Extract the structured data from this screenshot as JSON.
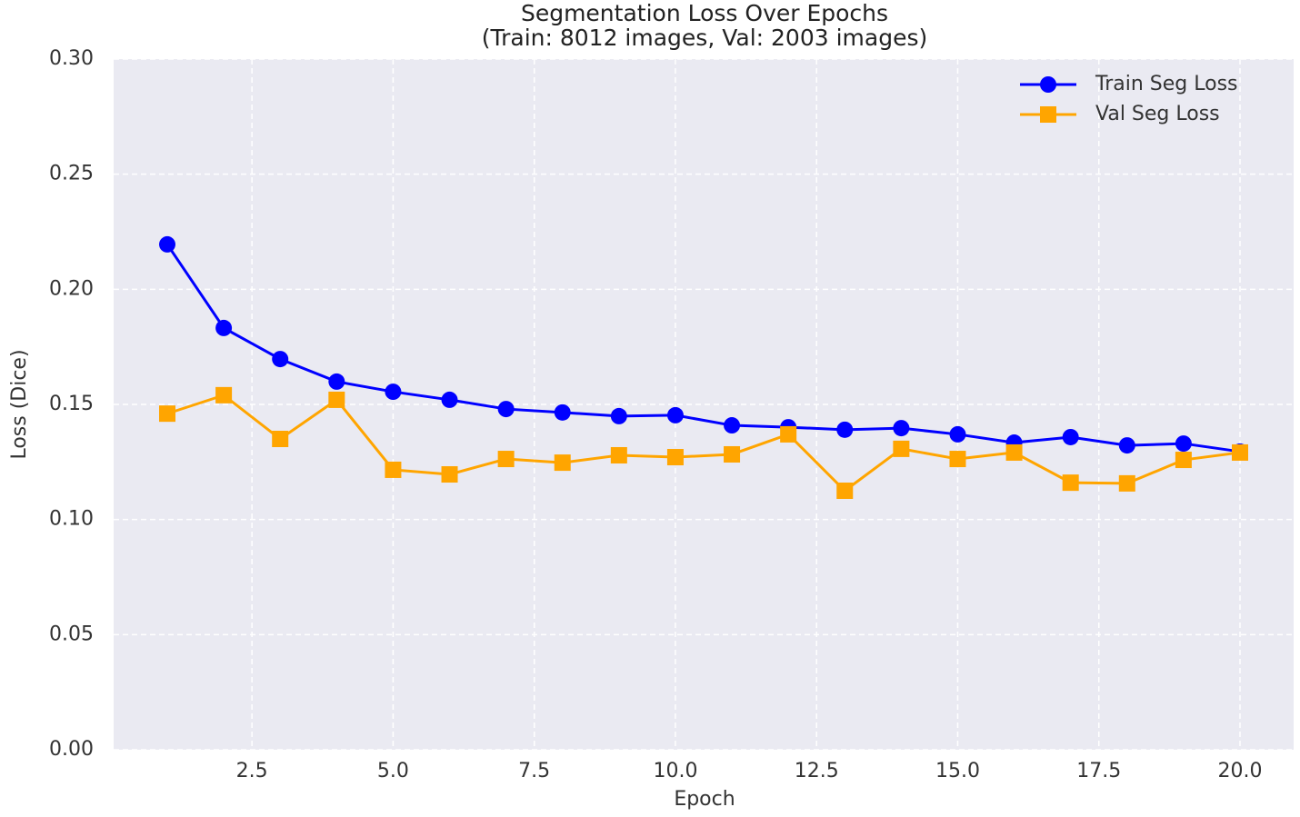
{
  "chart_data": {
    "type": "line",
    "title": "Segmentation Loss Over Epochs",
    "subtitle": "(Train: 8012 images, Val: 2003 images)",
    "x_label": "Epoch",
    "y_label": "Loss (Dice)",
    "x": [
      1,
      2,
      3,
      4,
      5,
      6,
      7,
      8,
      9,
      10,
      11,
      12,
      13,
      14,
      15,
      16,
      17,
      18,
      19,
      20
    ],
    "series": [
      {
        "name": "Train Seg Loss",
        "color": "#0000ff",
        "marker": "circle",
        "values": [
          0.2195,
          0.1832,
          0.1697,
          0.1599,
          0.1555,
          0.152,
          0.148,
          0.1465,
          0.1449,
          0.1453,
          0.1409,
          0.1401,
          0.139,
          0.1397,
          0.137,
          0.1334,
          0.1358,
          0.1322,
          0.133,
          0.1295
        ]
      },
      {
        "name": "Val Seg Loss",
        "color": "#ffa500",
        "marker": "square",
        "values": [
          0.146,
          0.154,
          0.135,
          0.152,
          0.1216,
          0.1196,
          0.1263,
          0.1247,
          0.1279,
          0.1271,
          0.1283,
          0.137,
          0.1125,
          0.1307,
          0.1263,
          0.1291,
          0.116,
          0.1157,
          0.1259,
          0.1291
        ]
      }
    ],
    "xlim": [
      0.05,
      20.95
    ],
    "xticks": [
      {
        "value": 2.5,
        "label": "2.5"
      },
      {
        "value": 5,
        "label": "5.0"
      },
      {
        "value": 7.5,
        "label": "7.5"
      },
      {
        "value": 10,
        "label": "10.0"
      },
      {
        "value": 12.5,
        "label": "12.5"
      },
      {
        "value": 15,
        "label": "15.0"
      },
      {
        "value": 17.5,
        "label": "17.5"
      },
      {
        "value": 20,
        "label": "20.0"
      }
    ],
    "ylim": [
      0,
      0.3
    ],
    "yticks": [
      {
        "value": 0,
        "label": "0.00"
      },
      0.05,
      {
        "value": 0.1,
        "label": "0.10"
      },
      0.15,
      {
        "value": 0.2,
        "label": "0.20"
      },
      0.25,
      {
        "value": 0.3,
        "label": "0.30"
      }
    ],
    "grid": true,
    "legend_position": "upper-right"
  }
}
